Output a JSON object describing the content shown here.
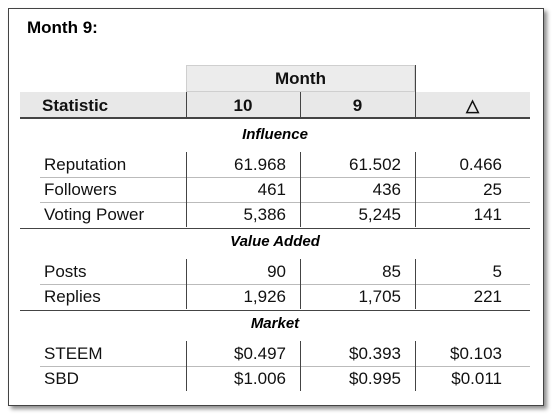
{
  "title": "Month 9:",
  "table": {
    "group_header": "Month",
    "columns": [
      "Statistic",
      "10",
      "9",
      "△"
    ],
    "sections": [
      {
        "name": "Influence",
        "rows": [
          [
            "Reputation",
            "61.968",
            "61.502",
            "0.466"
          ],
          [
            "Followers",
            "461",
            "436",
            "25"
          ],
          [
            "Voting Power",
            "5,386",
            "5,245",
            "141"
          ]
        ]
      },
      {
        "name": "Value Added",
        "rows": [
          [
            "Posts",
            "90",
            "85",
            "5"
          ],
          [
            "Replies",
            "1,926",
            "1,705",
            "221"
          ]
        ]
      },
      {
        "name": "Market",
        "rows": [
          [
            "STEEM",
            "$0.497",
            "$0.393",
            "$0.103"
          ],
          [
            "SBD",
            "$1.006",
            "$0.995",
            "$0.011"
          ]
        ]
      }
    ]
  }
}
